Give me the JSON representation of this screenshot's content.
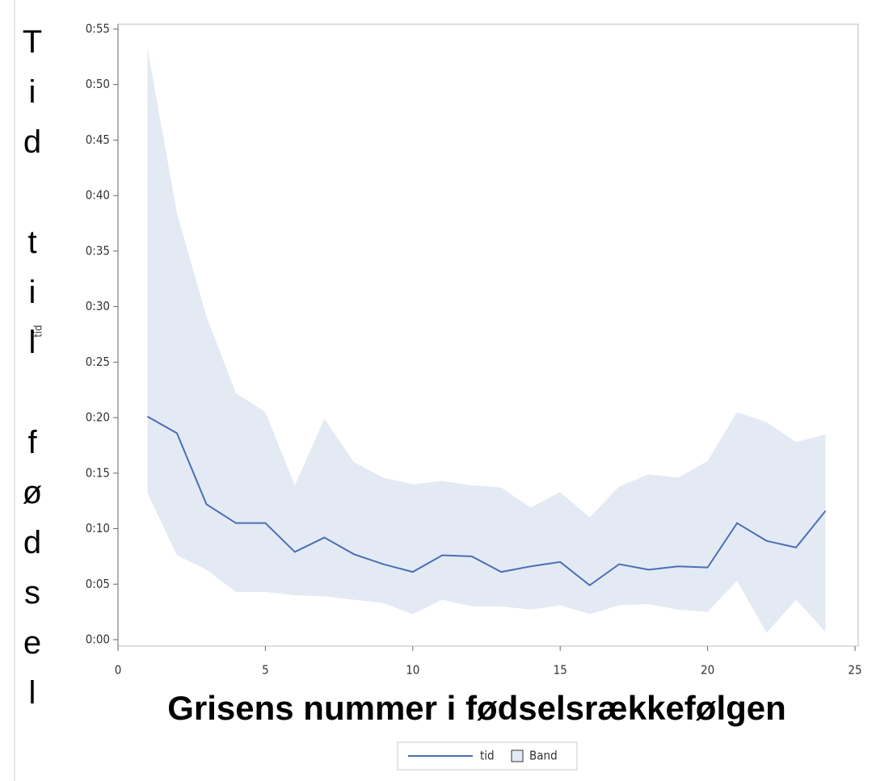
{
  "chart_data": {
    "type": "line",
    "x_label": "Grisens nummer i fødselsrækkefølgen",
    "y_label": "Tid til fødsel",
    "y_label_small": "tid",
    "x": [
      1,
      2,
      3,
      4,
      5,
      6,
      7,
      8,
      9,
      10,
      11,
      12,
      13,
      14,
      15,
      16,
      17,
      18,
      19,
      20,
      21,
      22,
      23,
      24
    ],
    "series": [
      {
        "name": "tid",
        "color": "#4a6fb5",
        "values": [
          0.201,
          0.186,
          0.122,
          0.105,
          0.105,
          0.079,
          0.092,
          0.077,
          0.068,
          0.061,
          0.076,
          0.075,
          0.061,
          0.066,
          0.07,
          0.049,
          0.068,
          0.063,
          0.066,
          0.065,
          0.105,
          0.089,
          0.083,
          0.116
        ]
      }
    ],
    "band": {
      "name": "Band",
      "color": "#e3eaf4",
      "upper": [
        0.533,
        0.384,
        0.291,
        0.222,
        0.205,
        0.139,
        0.199,
        0.16,
        0.146,
        0.14,
        0.143,
        0.139,
        0.137,
        0.119,
        0.133,
        0.11,
        0.138,
        0.149,
        0.146,
        0.161,
        0.205,
        0.196,
        0.178,
        0.185
      ],
      "lower": [
        0.132,
        0.076,
        0.063,
        0.043,
        0.043,
        0.04,
        0.039,
        0.036,
        0.033,
        0.023,
        0.036,
        0.03,
        0.03,
        0.027,
        0.031,
        0.023,
        0.031,
        0.032,
        0.027,
        0.025,
        0.053,
        0.006,
        0.036,
        0.007
      ]
    },
    "xlim": [
      0,
      25
    ],
    "xticks": [
      0,
      5,
      10,
      15,
      20,
      25
    ],
    "ylim": [
      0,
      0.55
    ],
    "yticks": [
      {
        "value": 0,
        "label": "0:00"
      },
      {
        "value": 0.05,
        "label": "0:05"
      },
      {
        "value": 0.1,
        "label": "0:10"
      },
      {
        "value": 0.15,
        "label": "0:15"
      },
      {
        "value": 0.2,
        "label": "0:20"
      },
      {
        "value": 0.25,
        "label": "0:25"
      },
      {
        "value": 0.3,
        "label": "0:30"
      },
      {
        "value": 0.35,
        "label": "0:35"
      },
      {
        "value": 0.4,
        "label": "0:40"
      },
      {
        "value": 0.45,
        "label": "0:45"
      },
      {
        "value": 0.5,
        "label": "0:50"
      },
      {
        "value": 0.55,
        "label": "0:55"
      }
    ]
  }
}
